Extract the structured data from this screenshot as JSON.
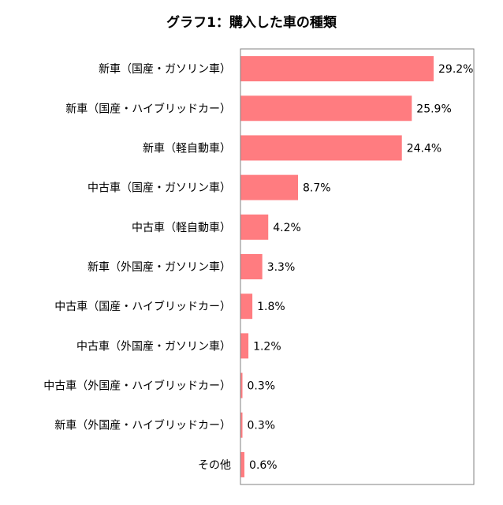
{
  "chart_data": {
    "type": "bar",
    "orientation": "horizontal",
    "title": "グラフ1：購入した車の種類",
    "categories": [
      "新車（国産・ガソリン車）",
      "新車（国産・ハイブリッドカー）",
      "新車（軽自動車）",
      "中古車（国産・ガソリン車）",
      "中古車（軽自動車）",
      "新車（外国産・ガソリン車）",
      "中古車（国産・ハイブリッドカー）",
      "中古車（外国産・ガソリン車）",
      "中古車（外国産・ハイブリッドカー）",
      "新車（外国産・ハイブリッドカー）",
      "その他"
    ],
    "values": [
      29.2,
      25.9,
      24.4,
      8.7,
      4.2,
      3.3,
      1.8,
      1.2,
      0.3,
      0.3,
      0.6
    ],
    "value_labels": [
      "29.2%",
      "25.9%",
      "24.4%",
      "8.7%",
      "4.2%",
      "3.3%",
      "1.8%",
      "1.2%",
      "0.3%",
      "0.3%",
      "0.6%"
    ],
    "xlim": [
      0,
      35
    ],
    "bar_color": "#FF7C80",
    "grid": false,
    "legend": "none"
  }
}
